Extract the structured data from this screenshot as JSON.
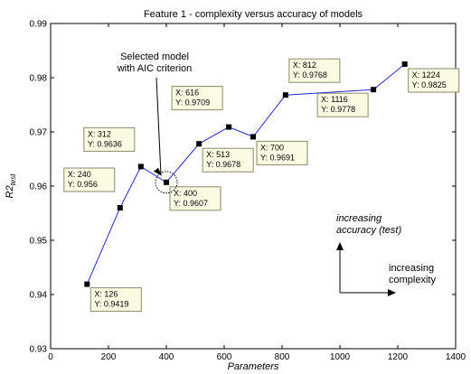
{
  "chart_data": {
    "type": "line",
    "title": "Feature 1 - complexity versus accuracy of models",
    "xlabel": "Parameters",
    "ylabel_main": "R2",
    "ylabel_sub": "test",
    "xlim": [
      0,
      1400
    ],
    "ylim": [
      0.93,
      0.99
    ],
    "xticks": [
      "0",
      "200",
      "400",
      "600",
      "800",
      "1000",
      "1200",
      "1400"
    ],
    "yticks": [
      "0.93",
      "0.94",
      "0.95",
      "0.96",
      "0.97",
      "0.98",
      "0.99"
    ],
    "grid": false,
    "colors": {
      "line": "#1f2bd1",
      "marker": "#000000",
      "datatip_bg": "#fbfbe3",
      "datatip_border": "#8a8a6a"
    },
    "points": [
      {
        "x": 126,
        "y": 0.9419,
        "label_x": "X: 126",
        "label_y": "Y: 0.9419"
      },
      {
        "x": 240,
        "y": 0.956,
        "label_x": "X: 240",
        "label_y": "Y: 0.956"
      },
      {
        "x": 312,
        "y": 0.9636,
        "label_x": "X: 312",
        "label_y": "Y: 0.9636"
      },
      {
        "x": 400,
        "y": 0.9607,
        "label_x": "X: 400",
        "label_y": "Y: 0.9607"
      },
      {
        "x": 513,
        "y": 0.9678,
        "label_x": "X: 513",
        "label_y": "Y: 0.9678"
      },
      {
        "x": 616,
        "y": 0.9709,
        "label_x": "X: 616",
        "label_y": "Y: 0.9709"
      },
      {
        "x": 700,
        "y": 0.9691,
        "label_x": "X: 700",
        "label_y": "Y: 0.9691"
      },
      {
        "x": 812,
        "y": 0.9768,
        "label_x": "X: 812",
        "label_y": "Y: 0.9768"
      },
      {
        "x": 1116,
        "y": 0.9778,
        "label_x": "X: 1116",
        "label_y": "Y: 0.9778"
      },
      {
        "x": 1224,
        "y": 0.9825,
        "label_x": "X: 1224",
        "label_y": "Y: 0.9825"
      }
    ],
    "annotations": {
      "selected_model": [
        "Selected model",
        "with AIC criterion"
      ],
      "increasing_accuracy": [
        "increasing",
        "accuracy (test)"
      ],
      "increasing_complexity": [
        "increasing",
        "complexity"
      ]
    }
  }
}
